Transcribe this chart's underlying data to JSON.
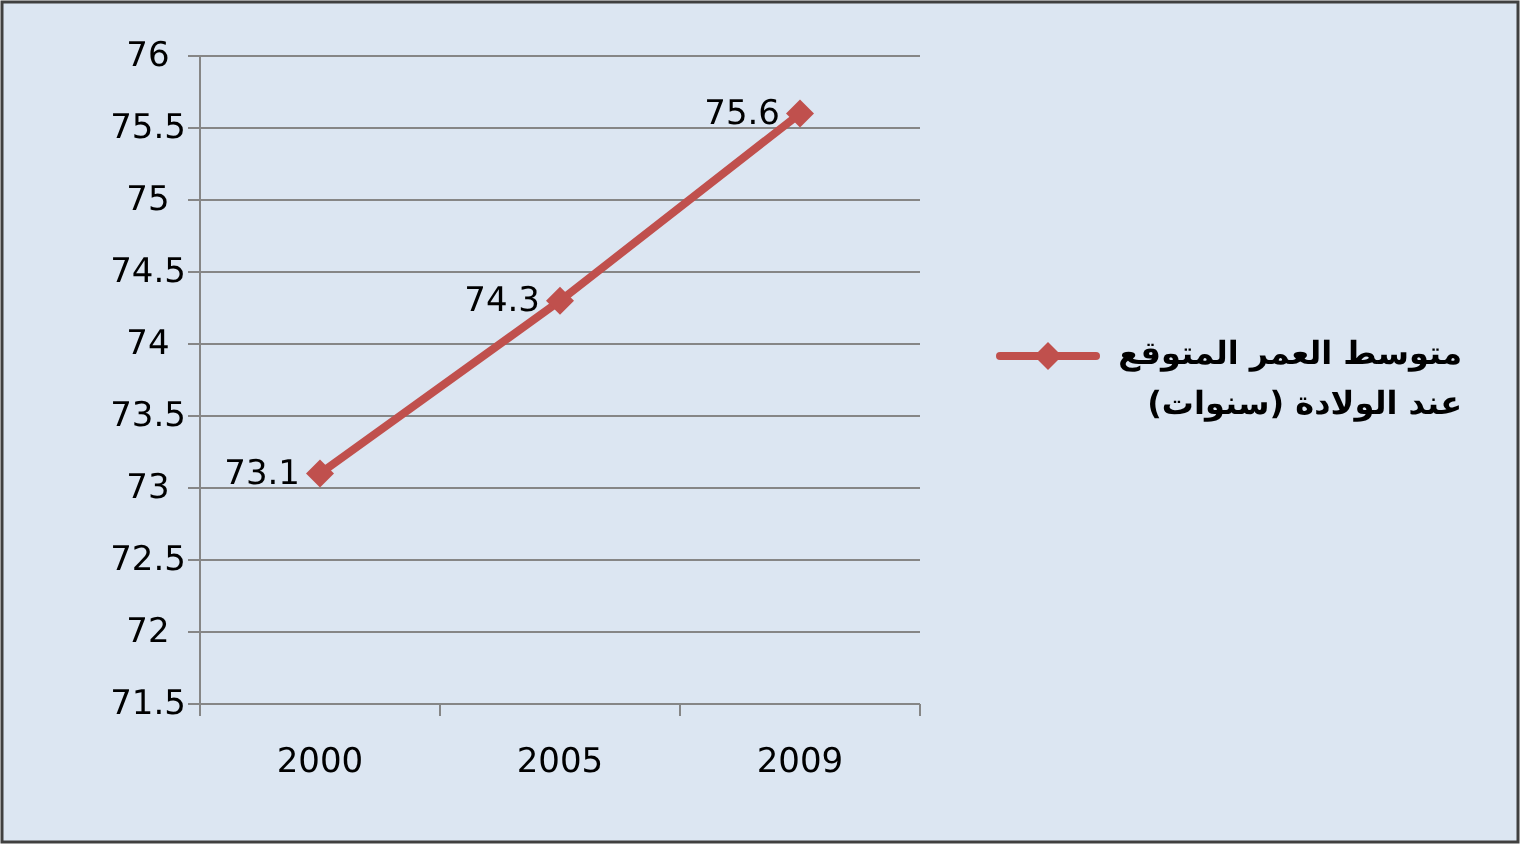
{
  "chart_data": {
    "type": "line",
    "categories": [
      "2000",
      "2005",
      "2009"
    ],
    "series": [
      {
        "name": "متوسط العمر المتوقع عند الولادة (سنوات)",
        "color": "#c0504d",
        "values": [
          73.1,
          74.3,
          75.6
        ]
      }
    ],
    "ylim": [
      71.5,
      76
    ],
    "yticks": [
      71.5,
      72,
      72.5,
      73,
      73.5,
      74,
      74.5,
      75,
      75.5,
      76
    ],
    "grid": "y",
    "legend": "right",
    "marker": "diamond",
    "data_labels": true
  }
}
